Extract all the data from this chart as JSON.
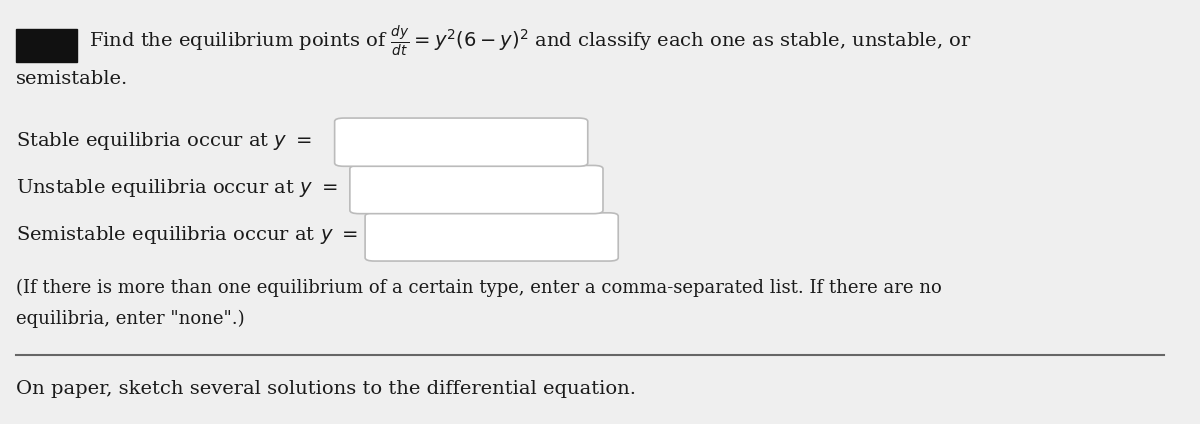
{
  "bg_color": "#efefef",
  "text_color": "#1a1a1a",
  "label1": "Stable equilibria occur at $y\\ =$",
  "label2": "Unstable equilibria occur at $y\\ =$",
  "label3": "Semistable equilibria occur at $y\\ =$",
  "note_line1": "(If there is more than one equilibrium of a certain type, enter a comma-separated list. If there are no",
  "note_line2": "equilibria, enter \"none\".)",
  "footer": "On paper, sketch several solutions to the differential equation.",
  "box_color": "#ffffff",
  "box_border": "#bbbbbb",
  "black_rect_color": "#111111",
  "font_size_main": 14,
  "font_size_note": 13
}
